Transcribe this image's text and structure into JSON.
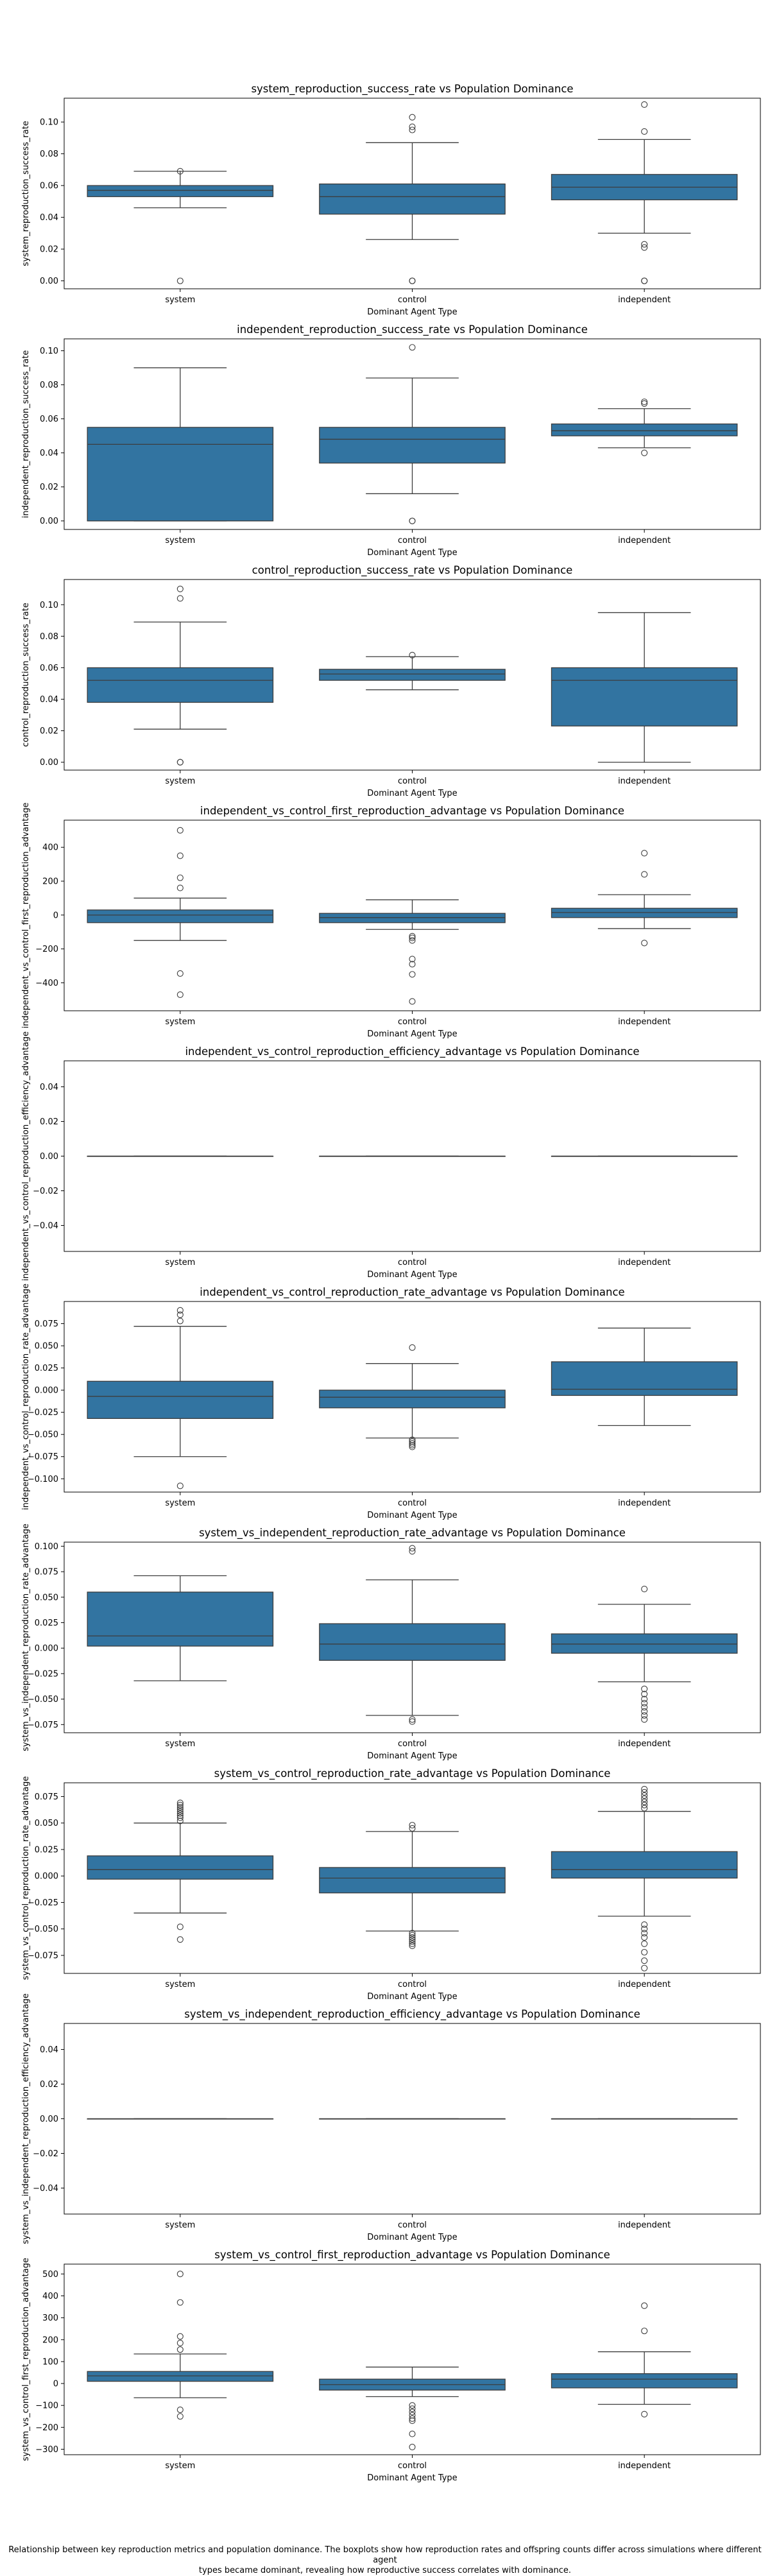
{
  "caption": {
    "line1": "Relationship between key reproduction metrics and population dominance. The boxplots show how reproduction rates and offspring counts differ across simulations where different agent",
    "line2": "types became dominant, revealing how reproductive success correlates with dominance."
  },
  "colors": {
    "box_fill": "#3274a1",
    "line": "#3d3d3d",
    "axes": "#000000"
  },
  "chart_data": [
    {
      "type": "box",
      "title": "system_reproduction_success_rate vs Population Dominance",
      "xlabel": "Dominant Agent Type",
      "ylabel": "system_reproduction_success_rate",
      "categories": [
        "system",
        "control",
        "independent"
      ],
      "ylim": [
        -0.005,
        0.115
      ],
      "yticks": [
        0.0,
        0.02,
        0.04,
        0.06,
        0.08,
        0.1
      ],
      "ytick_labels": [
        "0.00",
        "0.02",
        "0.04",
        "0.06",
        "0.08",
        "0.10"
      ],
      "boxes": [
        {
          "whislo": 0.046,
          "q1": 0.053,
          "med": 0.057,
          "q3": 0.06,
          "whishi": 0.069,
          "fliers": [
            0.0,
            0.069
          ]
        },
        {
          "whislo": 0.026,
          "q1": 0.042,
          "med": 0.053,
          "q3": 0.061,
          "whishi": 0.087,
          "fliers": [
            0.0,
            0.0,
            0.095,
            0.097,
            0.103
          ]
        },
        {
          "whislo": 0.03,
          "q1": 0.051,
          "med": 0.059,
          "q3": 0.067,
          "whishi": 0.089,
          "fliers": [
            0.0,
            0.0,
            0.021,
            0.023,
            0.094,
            0.111
          ]
        }
      ]
    },
    {
      "type": "box",
      "title": "independent_reproduction_success_rate vs Population Dominance",
      "xlabel": "Dominant Agent Type",
      "ylabel": "independent_reproduction_success_rate",
      "categories": [
        "system",
        "control",
        "independent"
      ],
      "ylim": [
        -0.005,
        0.107
      ],
      "yticks": [
        0.0,
        0.02,
        0.04,
        0.06,
        0.08,
        0.1
      ],
      "ytick_labels": [
        "0.00",
        "0.02",
        "0.04",
        "0.06",
        "0.08",
        "0.10"
      ],
      "boxes": [
        {
          "whislo": 0.0,
          "q1": 0.0,
          "med": 0.045,
          "q3": 0.055,
          "whishi": 0.09,
          "fliers": []
        },
        {
          "whislo": 0.016,
          "q1": 0.034,
          "med": 0.048,
          "q3": 0.055,
          "whishi": 0.084,
          "fliers": [
            0.0,
            0.0,
            0.102
          ]
        },
        {
          "whislo": 0.043,
          "q1": 0.05,
          "med": 0.053,
          "q3": 0.057,
          "whishi": 0.066,
          "fliers": [
            0.04,
            0.069,
            0.07
          ]
        }
      ]
    },
    {
      "type": "box",
      "title": "control_reproduction_success_rate vs Population Dominance",
      "xlabel": "Dominant Agent Type",
      "ylabel": "control_reproduction_success_rate",
      "categories": [
        "system",
        "control",
        "independent"
      ],
      "ylim": [
        -0.005,
        0.116
      ],
      "yticks": [
        0.0,
        0.02,
        0.04,
        0.06,
        0.08,
        0.1
      ],
      "ytick_labels": [
        "0.00",
        "0.02",
        "0.04",
        "0.06",
        "0.08",
        "0.10"
      ],
      "boxes": [
        {
          "whislo": 0.021,
          "q1": 0.038,
          "med": 0.052,
          "q3": 0.06,
          "whishi": 0.089,
          "fliers": [
            0.0,
            0.0,
            0.104,
            0.11
          ]
        },
        {
          "whislo": 0.046,
          "q1": 0.052,
          "med": 0.056,
          "q3": 0.059,
          "whishi": 0.067,
          "fliers": [
            0.068
          ]
        },
        {
          "whislo": 0.0,
          "q1": 0.023,
          "med": 0.052,
          "q3": 0.06,
          "whishi": 0.095,
          "fliers": []
        }
      ]
    },
    {
      "type": "box",
      "title": "independent_vs_control_first_reproduction_advantage vs Population Dominance",
      "xlabel": "Dominant Agent Type",
      "ylabel": "independent_vs_control_first_reproduction_advantage",
      "categories": [
        "system",
        "control",
        "independent"
      ],
      "ylim": [
        -565,
        560
      ],
      "yticks": [
        -400,
        -200,
        0,
        200,
        400
      ],
      "ytick_labels": [
        "−400",
        "−200",
        "0",
        "200",
        "400"
      ],
      "boxes": [
        {
          "whislo": -150,
          "q1": -45,
          "med": 0,
          "q3": 30,
          "whishi": 100,
          "fliers": [
            -470,
            -345,
            160,
            220,
            350,
            500
          ]
        },
        {
          "whislo": -85,
          "q1": -45,
          "med": -15,
          "q3": 10,
          "whishi": 90,
          "fliers": [
            -510,
            -350,
            -290,
            -260,
            -150,
            -135,
            -125
          ]
        },
        {
          "whislo": -80,
          "q1": -15,
          "med": 15,
          "q3": 40,
          "whishi": 120,
          "fliers": [
            -165,
            240,
            365
          ]
        }
      ]
    },
    {
      "type": "box",
      "title": "independent_vs_control_reproduction_efficiency_advantage vs Population Dominance",
      "xlabel": "Dominant Agent Type",
      "ylabel": "independent_vs_control_reproduction_efficiency_advantage",
      "categories": [
        "system",
        "control",
        "independent"
      ],
      "ylim": [
        -0.055,
        0.055
      ],
      "yticks": [
        -0.04,
        -0.02,
        0.0,
        0.02,
        0.04
      ],
      "ytick_labels": [
        "−0.04",
        "−0.02",
        "0.00",
        "0.02",
        "0.04"
      ],
      "boxes": [
        {
          "whislo": 0.0,
          "q1": 0.0,
          "med": 0.0,
          "q3": 0.0,
          "whishi": 0.0,
          "fliers": []
        },
        {
          "whislo": 0.0,
          "q1": 0.0,
          "med": 0.0,
          "q3": 0.0,
          "whishi": 0.0,
          "fliers": []
        },
        {
          "whislo": 0.0,
          "q1": 0.0,
          "med": 0.0,
          "q3": 0.0,
          "whishi": 0.0,
          "fliers": []
        }
      ]
    },
    {
      "type": "box",
      "title": "independent_vs_control_reproduction_rate_advantage vs Population Dominance",
      "xlabel": "Dominant Agent Type",
      "ylabel": "independent_vs_control_reproduction_rate_advantage",
      "categories": [
        "system",
        "control",
        "independent"
      ],
      "ylim": [
        -0.115,
        0.1
      ],
      "yticks": [
        -0.1,
        -0.075,
        -0.05,
        -0.025,
        0.0,
        0.025,
        0.05,
        0.075
      ],
      "ytick_labels": [
        "−0.100",
        "−0.075",
        "−0.050",
        "−0.025",
        "0.000",
        "0.025",
        "0.050",
        "0.075"
      ],
      "boxes": [
        {
          "whislo": -0.075,
          "q1": -0.032,
          "med": -0.007,
          "q3": 0.01,
          "whishi": 0.072,
          "fliers": [
            -0.108,
            0.078,
            0.085,
            0.09
          ]
        },
        {
          "whislo": -0.054,
          "q1": -0.02,
          "med": -0.008,
          "q3": 0.0,
          "whishi": 0.03,
          "fliers": [
            -0.056,
            -0.058,
            -0.06,
            -0.062,
            -0.064,
            0.048
          ]
        },
        {
          "whislo": -0.04,
          "q1": -0.006,
          "med": 0.001,
          "q3": 0.032,
          "whishi": 0.07,
          "fliers": []
        }
      ]
    },
    {
      "type": "box",
      "title": "system_vs_independent_reproduction_rate_advantage vs Population Dominance",
      "xlabel": "Dominant Agent Type",
      "ylabel": "system_vs_independent_reproduction_rate_advantage",
      "categories": [
        "system",
        "control",
        "independent"
      ],
      "ylim": [
        -0.083,
        0.104
      ],
      "yticks": [
        -0.075,
        -0.05,
        -0.025,
        0.0,
        0.025,
        0.05,
        0.075,
        0.1
      ],
      "ytick_labels": [
        "−0.075",
        "−0.050",
        "−0.025",
        "0.000",
        "0.025",
        "0.050",
        "0.075",
        "0.100"
      ],
      "boxes": [
        {
          "whislo": -0.032,
          "q1": 0.002,
          "med": 0.012,
          "q3": 0.055,
          "whishi": 0.071,
          "fliers": []
        },
        {
          "whislo": -0.066,
          "q1": -0.012,
          "med": 0.004,
          "q3": 0.024,
          "whishi": 0.067,
          "fliers": [
            -0.07,
            -0.072,
            0.095,
            0.098
          ]
        },
        {
          "whislo": -0.033,
          "q1": -0.005,
          "med": 0.004,
          "q3": 0.014,
          "whishi": 0.043,
          "fliers": [
            -0.04,
            -0.045,
            -0.05,
            -0.054,
            -0.058,
            -0.062,
            -0.066,
            -0.07,
            0.058
          ]
        }
      ]
    },
    {
      "type": "box",
      "title": "system_vs_control_reproduction_rate_advantage vs Population Dominance",
      "xlabel": "Dominant Agent Type",
      "ylabel": "system_vs_control_reproduction_rate_advantage",
      "categories": [
        "system",
        "control",
        "independent"
      ],
      "ylim": [
        -0.092,
        0.088
      ],
      "yticks": [
        -0.075,
        -0.05,
        -0.025,
        0.0,
        0.025,
        0.05,
        0.075
      ],
      "ytick_labels": [
        "−0.075",
        "−0.050",
        "−0.025",
        "0.000",
        "0.025",
        "0.050",
        "0.075"
      ],
      "boxes": [
        {
          "whislo": -0.035,
          "q1": -0.003,
          "med": 0.006,
          "q3": 0.019,
          "whishi": 0.05,
          "fliers": [
            -0.06,
            -0.048,
            0.052,
            0.055,
            0.057,
            0.059,
            0.061,
            0.063,
            0.065,
            0.067,
            0.069
          ]
        },
        {
          "whislo": -0.052,
          "q1": -0.016,
          "med": -0.002,
          "q3": 0.008,
          "whishi": 0.042,
          "fliers": [
            -0.054,
            -0.056,
            -0.058,
            -0.06,
            -0.062,
            -0.064,
            -0.066,
            0.045,
            0.048
          ]
        },
        {
          "whislo": -0.038,
          "q1": -0.002,
          "med": 0.006,
          "q3": 0.023,
          "whishi": 0.061,
          "fliers": [
            -0.087,
            -0.08,
            -0.072,
            -0.064,
            -0.058,
            -0.054,
            -0.05,
            -0.046,
            0.064,
            0.067,
            0.07,
            0.073,
            0.076,
            0.079,
            0.082
          ]
        }
      ]
    },
    {
      "type": "box",
      "title": "system_vs_independent_reproduction_efficiency_advantage vs Population Dominance",
      "xlabel": "Dominant Agent Type",
      "ylabel": "system_vs_independent_reproduction_efficiency_advantage",
      "categories": [
        "system",
        "control",
        "independent"
      ],
      "ylim": [
        -0.055,
        0.055
      ],
      "yticks": [
        -0.04,
        -0.02,
        0.0,
        0.02,
        0.04
      ],
      "ytick_labels": [
        "−0.04",
        "−0.02",
        "0.00",
        "0.02",
        "0.04"
      ],
      "boxes": [
        {
          "whislo": 0.0,
          "q1": 0.0,
          "med": 0.0,
          "q3": 0.0,
          "whishi": 0.0,
          "fliers": []
        },
        {
          "whislo": 0.0,
          "q1": 0.0,
          "med": 0.0,
          "q3": 0.0,
          "whishi": 0.0,
          "fliers": []
        },
        {
          "whislo": 0.0,
          "q1": 0.0,
          "med": 0.0,
          "q3": 0.0,
          "whishi": 0.0,
          "fliers": []
        }
      ]
    },
    {
      "type": "box",
      "title": "system_vs_control_first_reproduction_advantage vs Population Dominance",
      "xlabel": "Dominant Agent Type",
      "ylabel": "system_vs_control_first_reproduction_advantage",
      "categories": [
        "system",
        "control",
        "independent"
      ],
      "ylim": [
        -325,
        545
      ],
      "yticks": [
        -300,
        -200,
        -100,
        0,
        100,
        200,
        300,
        400,
        500
      ],
      "ytick_labels": [
        "−300",
        "−200",
        "−100",
        "0",
        "100",
        "200",
        "300",
        "400",
        "500"
      ],
      "boxes": [
        {
          "whislo": -65,
          "q1": 10,
          "med": 35,
          "q3": 55,
          "whishi": 135,
          "fliers": [
            -150,
            -120,
            155,
            185,
            215,
            370,
            500
          ]
        },
        {
          "whislo": -60,
          "q1": -30,
          "med": -5,
          "q3": 20,
          "whishi": 75,
          "fliers": [
            -290,
            -230,
            -170,
            -160,
            -145,
            -130,
            -115,
            -100
          ]
        },
        {
          "whislo": -95,
          "q1": -20,
          "med": 20,
          "q3": 45,
          "whishi": 145,
          "fliers": [
            -140,
            240,
            355
          ]
        }
      ]
    }
  ]
}
